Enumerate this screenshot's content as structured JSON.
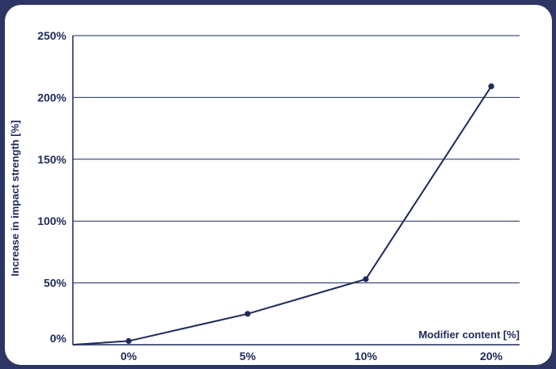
{
  "chart_data": {
    "type": "line",
    "title": "",
    "xlabel": "Modifier content [%]",
    "ylabel": "Increase in impact strength [%]",
    "categories": [
      "0%",
      "5%",
      "10%",
      "20%"
    ],
    "series": [
      {
        "values": [
          3,
          25,
          53,
          209
        ]
      }
    ],
    "ylim": [
      0,
      250
    ],
    "yticks": [
      {
        "value": 0,
        "label": "0%"
      },
      {
        "value": 50,
        "label": "50%"
      },
      {
        "value": 100,
        "label": "100%"
      },
      {
        "value": 150,
        "label": "150%"
      },
      {
        "value": 200,
        "label": "200%"
      },
      {
        "value": 250,
        "label": "250%"
      }
    ],
    "grid": "horizontal",
    "colors": {
      "line": "#1e2a5a",
      "text": "#1e2a5a",
      "background": "#2d3565",
      "card": "#ffffff"
    }
  }
}
